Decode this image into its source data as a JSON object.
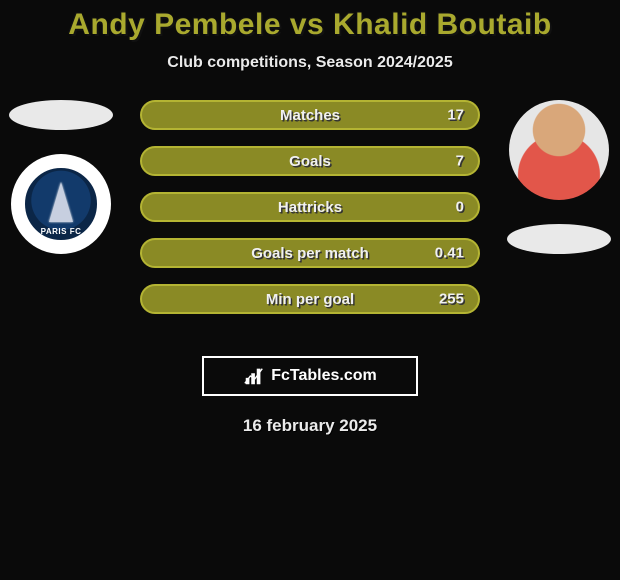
{
  "title": "Andy Pembele vs Khalid Boutaib",
  "subtitle": "Club competitions, Season 2024/2025",
  "date_text": "16 february 2025",
  "colors": {
    "accent": "#a9a92e",
    "bar_border": "#b4b433",
    "bar_fill": "#8a8a25",
    "text_light": "#eaeaea",
    "background": "#0a0a0a"
  },
  "left": {
    "club_name": "PARIS FC"
  },
  "right": {
    "player_name": "Khalid Boutaib"
  },
  "stats": [
    {
      "label": "Matches",
      "value": "17"
    },
    {
      "label": "Goals",
      "value": "7"
    },
    {
      "label": "Hattricks",
      "value": "0"
    },
    {
      "label": "Goals per match",
      "value": "0.41"
    },
    {
      "label": "Min per goal",
      "value": "255"
    }
  ],
  "watermark": "FcTables.com"
}
